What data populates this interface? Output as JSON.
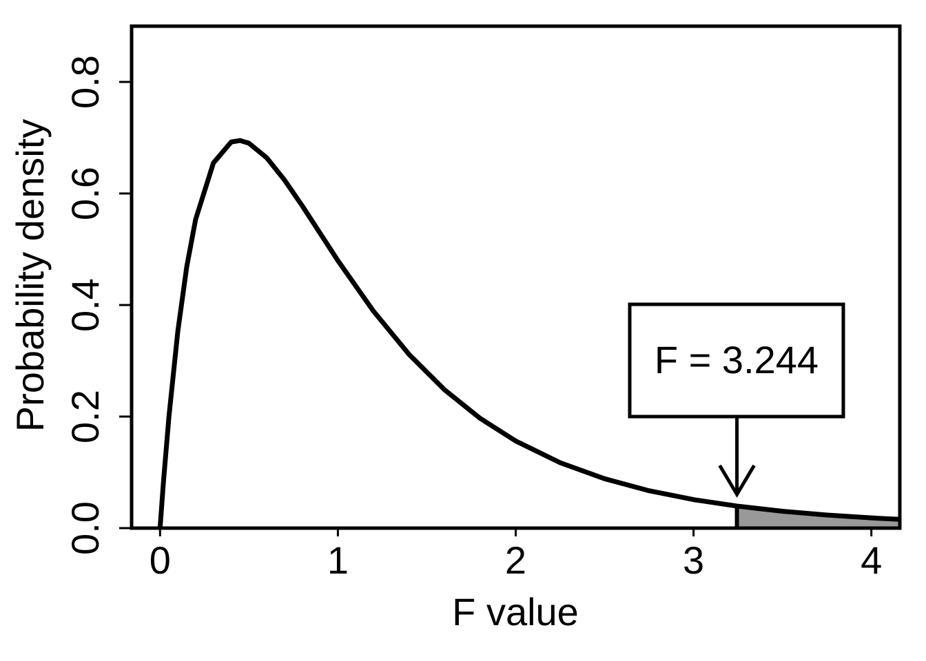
{
  "chart_data": {
    "type": "line",
    "x_label": "F value",
    "y_label": "Probability density",
    "x": [
      0,
      0.02,
      0.05,
      0.1,
      0.15,
      0.2,
      0.3,
      0.4,
      0.45,
      0.5,
      0.6,
      0.7,
      0.8,
      0.9,
      1.0,
      1.2,
      1.4,
      1.6,
      1.8,
      2.0,
      2.25,
      2.5,
      2.75,
      3.0,
      3.244,
      3.5,
      3.75,
      4.0,
      4.16
    ],
    "series": [
      {
        "color": "#000000",
        "values": [
          0,
          0.0862,
          0.1999,
          0.353,
          0.4685,
          0.5534,
          0.6547,
          0.6923,
          0.695,
          0.6901,
          0.6639,
          0.6241,
          0.5777,
          0.5287,
          0.4797,
          0.3891,
          0.3116,
          0.248,
          0.1968,
          0.1562,
          0.1173,
          0.0885,
          0.067,
          0.0511,
          0.0395,
          0.0302,
          0.0235,
          0.0183,
          0.0157
        ]
      }
    ],
    "xlim": [
      -0.16,
      4.16
    ],
    "ylim": [
      0,
      0.9
    ],
    "xticks": [
      0,
      1,
      2,
      3,
      4
    ],
    "yticks": [
      {
        "value": 0,
        "label": "0.0"
      },
      {
        "value": 0.2,
        "label": "0.2"
      },
      {
        "value": 0.4,
        "label": "0.4"
      },
      {
        "value": 0.6,
        "label": "0.6"
      },
      {
        "value": 0.8,
        "label": "0.8"
      }
    ],
    "annotation": {
      "label": "F = 3.244",
      "x": 3.244
    },
    "shade_color": "#999999"
  }
}
